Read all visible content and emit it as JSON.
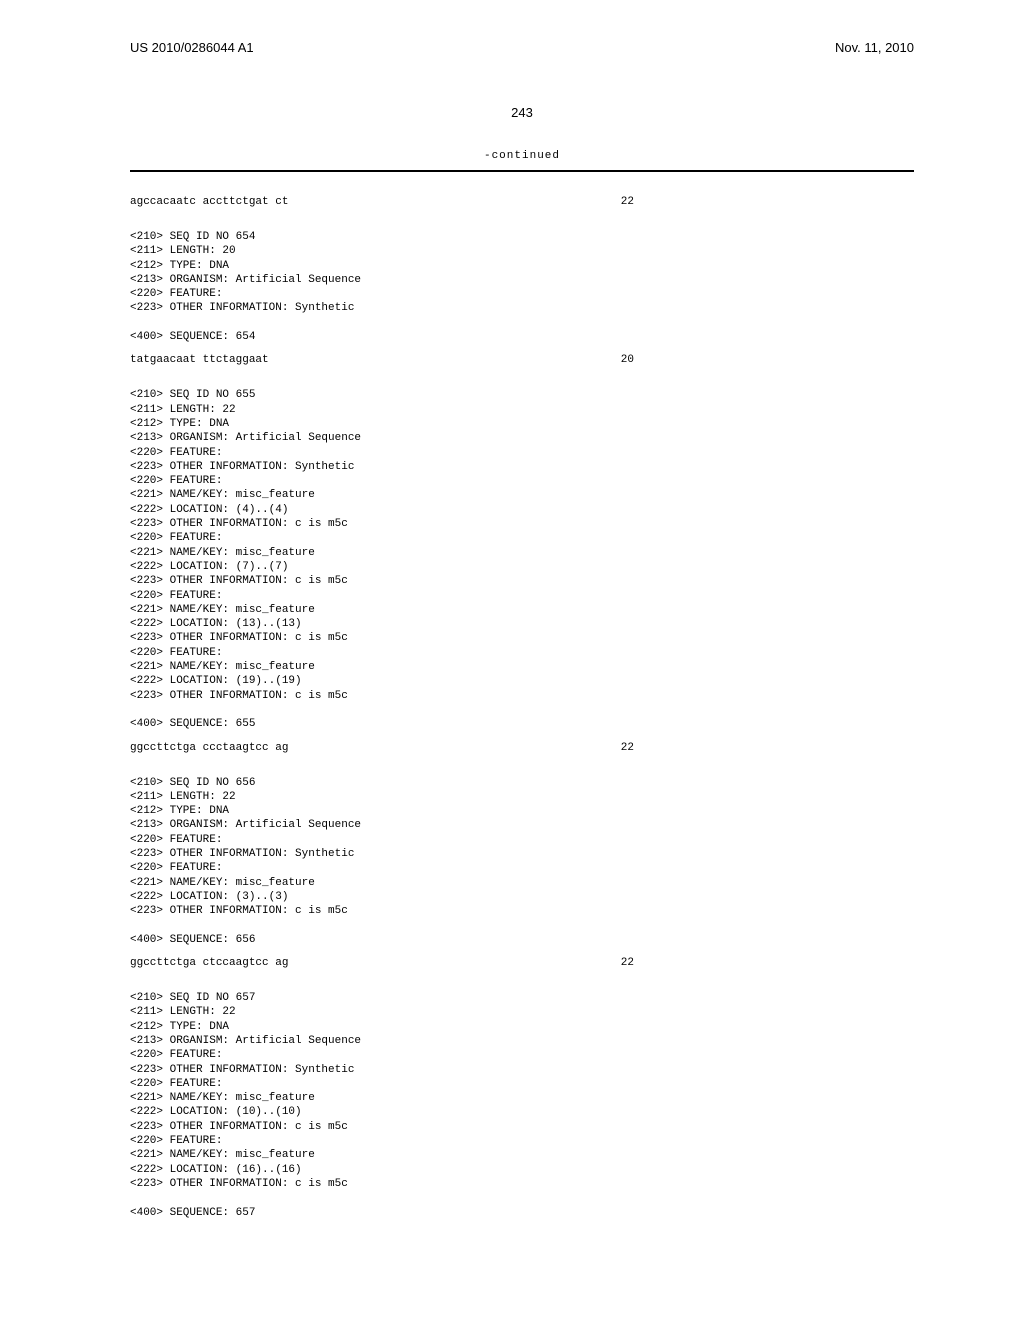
{
  "header": {
    "publication": "US 2010/0286044 A1",
    "date": "Nov. 11, 2010"
  },
  "page_number": "243",
  "continued_label": "-continued",
  "blocks": [
    {
      "type": "sequence",
      "text": "agccacaatc accttctgat ct",
      "length": "22"
    },
    {
      "type": "entry",
      "lines": [
        "<210> SEQ ID NO 654",
        "<211> LENGTH: 20",
        "<212> TYPE: DNA",
        "<213> ORGANISM: Artificial Sequence",
        "<220> FEATURE:",
        "<223> OTHER INFORMATION: Synthetic",
        "",
        "<400> SEQUENCE: 654"
      ]
    },
    {
      "type": "sequence",
      "text": "tatgaacaat ttctaggaat",
      "length": "20"
    },
    {
      "type": "entry",
      "lines": [
        "<210> SEQ ID NO 655",
        "<211> LENGTH: 22",
        "<212> TYPE: DNA",
        "<213> ORGANISM: Artificial Sequence",
        "<220> FEATURE:",
        "<223> OTHER INFORMATION: Synthetic",
        "<220> FEATURE:",
        "<221> NAME/KEY: misc_feature",
        "<222> LOCATION: (4)..(4)",
        "<223> OTHER INFORMATION: c is m5c",
        "<220> FEATURE:",
        "<221> NAME/KEY: misc_feature",
        "<222> LOCATION: (7)..(7)",
        "<223> OTHER INFORMATION: c is m5c",
        "<220> FEATURE:",
        "<221> NAME/KEY: misc_feature",
        "<222> LOCATION: (13)..(13)",
        "<223> OTHER INFORMATION: c is m5c",
        "<220> FEATURE:",
        "<221> NAME/KEY: misc_feature",
        "<222> LOCATION: (19)..(19)",
        "<223> OTHER INFORMATION: c is m5c",
        "",
        "<400> SEQUENCE: 655"
      ]
    },
    {
      "type": "sequence",
      "text": "ggccttctga ccctaagtcc ag",
      "length": "22"
    },
    {
      "type": "entry",
      "lines": [
        "<210> SEQ ID NO 656",
        "<211> LENGTH: 22",
        "<212> TYPE: DNA",
        "<213> ORGANISM: Artificial Sequence",
        "<220> FEATURE:",
        "<223> OTHER INFORMATION: Synthetic",
        "<220> FEATURE:",
        "<221> NAME/KEY: misc_feature",
        "<222> LOCATION: (3)..(3)",
        "<223> OTHER INFORMATION: c is m5c",
        "",
        "<400> SEQUENCE: 656"
      ]
    },
    {
      "type": "sequence",
      "text": "ggccttctga ctccaagtcc ag",
      "length": "22"
    },
    {
      "type": "entry",
      "lines": [
        "<210> SEQ ID NO 657",
        "<211> LENGTH: 22",
        "<212> TYPE: DNA",
        "<213> ORGANISM: Artificial Sequence",
        "<220> FEATURE:",
        "<223> OTHER INFORMATION: Synthetic",
        "<220> FEATURE:",
        "<221> NAME/KEY: misc_feature",
        "<222> LOCATION: (10)..(10)",
        "<223> OTHER INFORMATION: c is m5c",
        "<220> FEATURE:",
        "<221> NAME/KEY: misc_feature",
        "<222> LOCATION: (16)..(16)",
        "<223> OTHER INFORMATION: c is m5c",
        "",
        "<400> SEQUENCE: 657"
      ]
    }
  ]
}
